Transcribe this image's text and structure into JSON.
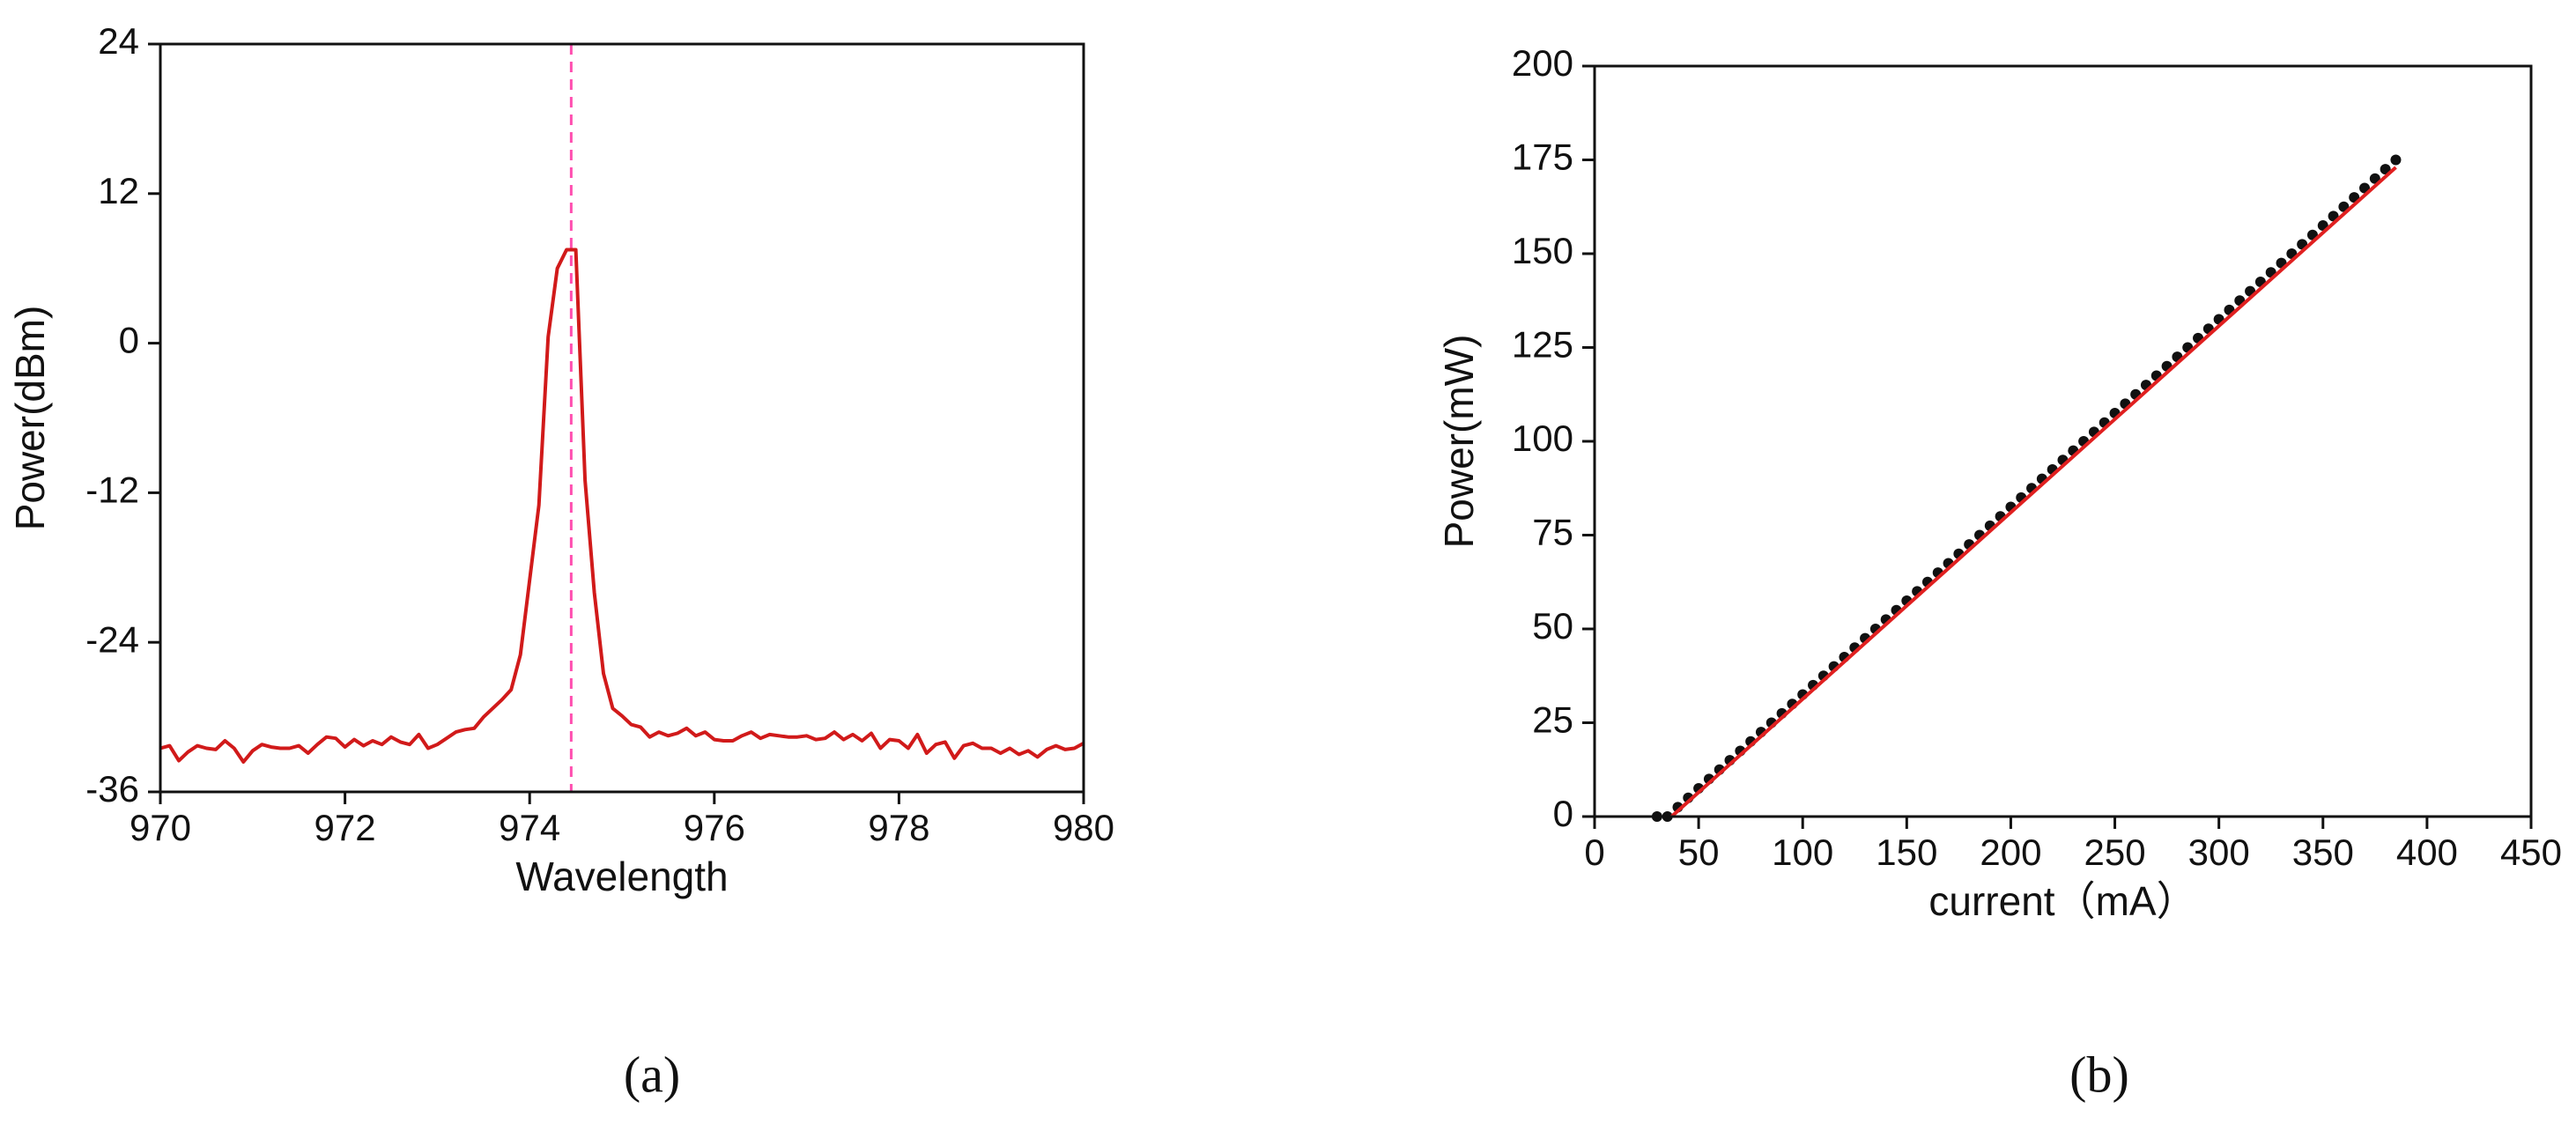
{
  "chart_data": [
    {
      "type": "line",
      "xlabel": "Wavelength",
      "ylabel": "Power(dBm)",
      "caption": "(a)",
      "xlim": [
        970,
        980
      ],
      "xticks": [
        970,
        972,
        974,
        976,
        978,
        980
      ],
      "ylim": [
        -36,
        24
      ],
      "yticks": [
        -36,
        -24,
        -12,
        0,
        12,
        24
      ],
      "vline": 974.45,
      "vline_color": "#ff4fb0",
      "series": [
        {
          "color": "#d11a1a",
          "x": [
            970.0,
            970.1,
            970.2,
            970.3,
            970.4,
            970.5,
            970.6,
            970.7,
            970.8,
            970.9,
            971.0,
            971.1,
            971.2,
            971.3,
            971.4,
            971.5,
            971.6,
            971.7,
            971.8,
            971.9,
            972.0,
            972.1,
            972.2,
            972.3,
            972.4,
            972.5,
            972.6,
            972.7,
            972.8,
            972.9,
            973.0,
            973.1,
            973.2,
            973.3,
            973.4,
            973.5,
            973.6,
            973.7,
            973.8,
            973.9,
            974.0,
            974.1,
            974.2,
            974.3,
            974.4,
            974.5,
            974.6,
            974.7,
            974.8,
            974.9,
            975.0,
            975.1,
            975.2,
            975.3,
            975.4,
            975.5,
            975.6,
            975.7,
            975.8,
            975.9,
            976.0,
            976.1,
            976.2,
            976.3,
            976.4,
            976.5,
            976.6,
            976.7,
            976.8,
            976.9,
            977.0,
            977.1,
            977.2,
            977.3,
            977.4,
            977.5,
            977.6,
            977.7,
            977.8,
            977.9,
            978.0,
            978.1,
            978.2,
            978.3,
            978.4,
            978.5,
            978.6,
            978.7,
            978.8,
            978.9,
            979.0,
            979.1,
            979.2,
            979.3,
            979.4,
            979.5,
            979.6,
            979.7,
            979.8,
            979.9,
            980.0
          ],
          "values": [
            -32.5,
            -32.3,
            -33.5,
            -32.8,
            -32.3,
            -32.5,
            -32.6,
            -31.9,
            -32.5,
            -33.6,
            -32.7,
            -32.2,
            -32.4,
            -32.5,
            -32.5,
            -32.3,
            -32.9,
            -32.2,
            -31.6,
            -31.7,
            -32.4,
            -31.8,
            -32.3,
            -31.9,
            -32.2,
            -31.6,
            -32.0,
            -32.2,
            -31.4,
            -32.5,
            -32.2,
            -31.7,
            -31.2,
            -31.0,
            -30.9,
            -30.0,
            -29.3,
            -28.6,
            -27.8,
            -25.0,
            -19.0,
            -13.0,
            0.5,
            6.0,
            7.5,
            7.5,
            -11.0,
            -20.0,
            -26.5,
            -29.3,
            -29.9,
            -30.6,
            -30.8,
            -31.6,
            -31.2,
            -31.5,
            -31.3,
            -30.9,
            -31.5,
            -31.2,
            -31.8,
            -31.9,
            -31.9,
            -31.5,
            -31.2,
            -31.7,
            -31.4,
            -31.5,
            -31.6,
            -31.6,
            -31.5,
            -31.8,
            -31.7,
            -31.2,
            -31.8,
            -31.4,
            -31.9,
            -31.3,
            -32.5,
            -31.8,
            -31.9,
            -32.5,
            -31.4,
            -32.9,
            -32.2,
            -32.0,
            -33.3,
            -32.3,
            -32.1,
            -32.5,
            -32.5,
            -32.9,
            -32.5,
            -33.0,
            -32.7,
            -33.2,
            -32.6,
            -32.3,
            -32.6,
            -32.5,
            -32.1
          ]
        }
      ]
    },
    {
      "type": "scatter",
      "xlabel": "current（mA）",
      "ylabel": "Power(mW)",
      "caption": "(b)",
      "xlim": [
        0,
        450
      ],
      "xticks": [
        0,
        50,
        100,
        150,
        200,
        250,
        300,
        350,
        400,
        450
      ],
      "ylim": [
        0,
        200
      ],
      "yticks": [
        0,
        25,
        50,
        75,
        100,
        125,
        150,
        175,
        200
      ],
      "series": [
        {
          "type": "scatter",
          "color": "#111111",
          "x": [
            30,
            35,
            40,
            45,
            50,
            55,
            60,
            65,
            70,
            75,
            80,
            85,
            90,
            95,
            100,
            105,
            110,
            115,
            120,
            125,
            130,
            135,
            140,
            145,
            150,
            155,
            160,
            165,
            170,
            175,
            180,
            185,
            190,
            195,
            200,
            205,
            210,
            215,
            220,
            225,
            230,
            235,
            240,
            245,
            250,
            255,
            260,
            265,
            270,
            275,
            280,
            285,
            290,
            295,
            300,
            305,
            310,
            315,
            320,
            325,
            330,
            335,
            340,
            345,
            350,
            355,
            360,
            365,
            370,
            375,
            380,
            385
          ],
          "values": [
            0,
            0,
            2.5,
            5,
            7.5,
            10,
            12.5,
            15,
            17.5,
            20,
            22.5,
            25,
            27.5,
            30,
            32.5,
            35,
            37.5,
            40,
            42.5,
            45,
            47.5,
            50,
            52.5,
            55,
            57.5,
            60,
            62.5,
            65,
            67.5,
            70,
            72.5,
            75,
            77.5,
            80,
            82.5,
            85,
            87.5,
            90,
            92.5,
            95,
            97.5,
            100,
            102.5,
            105,
            107.5,
            110,
            112.5,
            115,
            117.5,
            120,
            122.5,
            125,
            127.5,
            130,
            132.5,
            135,
            137.5,
            140,
            142.5,
            145,
            147.5,
            150,
            152.5,
            155,
            157.5,
            160,
            162.5,
            165,
            167.5,
            170,
            172.5,
            175
          ]
        },
        {
          "type": "line",
          "color": "#e02020",
          "x": [
            37,
            385
          ],
          "values": [
            0,
            173
          ]
        }
      ]
    }
  ]
}
